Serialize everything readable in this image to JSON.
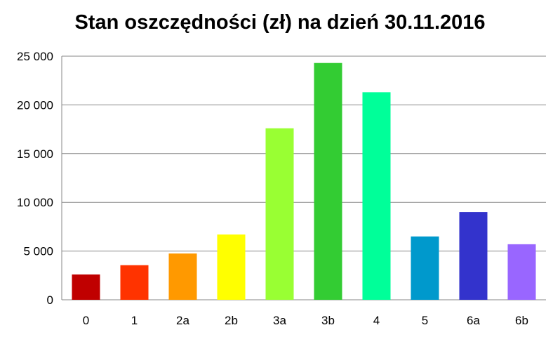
{
  "chart_data": {
    "type": "bar",
    "title": "Stan oszczędności (zł) na dzień 30.11.2016",
    "xlabel": "",
    "ylabel": "",
    "categories": [
      "0",
      "1",
      "2a",
      "2b",
      "3a",
      "3b",
      "4",
      "5",
      "6a",
      "6b"
    ],
    "values": [
      2600,
      3550,
      4750,
      6700,
      17600,
      24300,
      21300,
      6500,
      9000,
      5700
    ],
    "bar_colors": [
      "#c00000",
      "#ff3300",
      "#ff9900",
      "#ffff00",
      "#99ff33",
      "#33cc33",
      "#00ff99",
      "#0099cc",
      "#3333cc",
      "#9966ff"
    ],
    "ylim": [
      0,
      25000
    ],
    "yticks": [
      0,
      5000,
      10000,
      15000,
      20000,
      25000
    ],
    "ytick_labels": [
      "0",
      "5 000",
      "10 000",
      "15 000",
      "20 000",
      "25 000"
    ],
    "grid": true,
    "legend": "none"
  }
}
